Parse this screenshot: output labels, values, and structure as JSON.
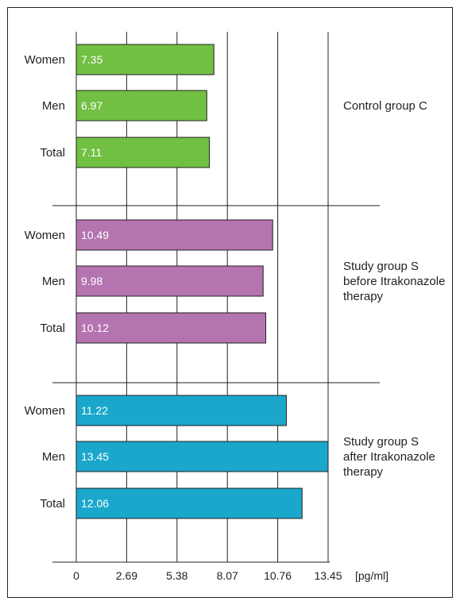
{
  "chart_data": {
    "type": "bar",
    "orientation": "horizontal",
    "unit": "[pg/ml]",
    "xlim": [
      0,
      13.45
    ],
    "x_ticks": [
      "0",
      "2.69",
      "5.38",
      "8.07",
      "10.76",
      "13.45"
    ],
    "groups": [
      {
        "label_lines": [
          "Control group C"
        ],
        "color": "#72c043",
        "bars": [
          {
            "category": "Women",
            "value": 7.35,
            "label": "7.35"
          },
          {
            "category": "Men",
            "value": 6.97,
            "label": "6.97"
          },
          {
            "category": "Total",
            "value": 7.11,
            "label": "7.11"
          }
        ]
      },
      {
        "label_lines": [
          "Study group S",
          "before Itrakonazole",
          "therapy"
        ],
        "color": "#b474b0",
        "bars": [
          {
            "category": "Women",
            "value": 10.49,
            "label": "10.49"
          },
          {
            "category": "Men",
            "value": 9.98,
            "label": "9.98"
          },
          {
            "category": "Total",
            "value": 10.12,
            "label": "10.12"
          }
        ]
      },
      {
        "label_lines": [
          "Study group S",
          "after Itrakonazole",
          "therapy"
        ],
        "color": "#1aa7cb",
        "bars": [
          {
            "category": "Women",
            "value": 11.22,
            "label": "11.22"
          },
          {
            "category": "Men",
            "value": 13.45,
            "label": "13.45"
          },
          {
            "category": "Total",
            "value": 12.06,
            "label": "12.06"
          }
        ]
      }
    ]
  }
}
